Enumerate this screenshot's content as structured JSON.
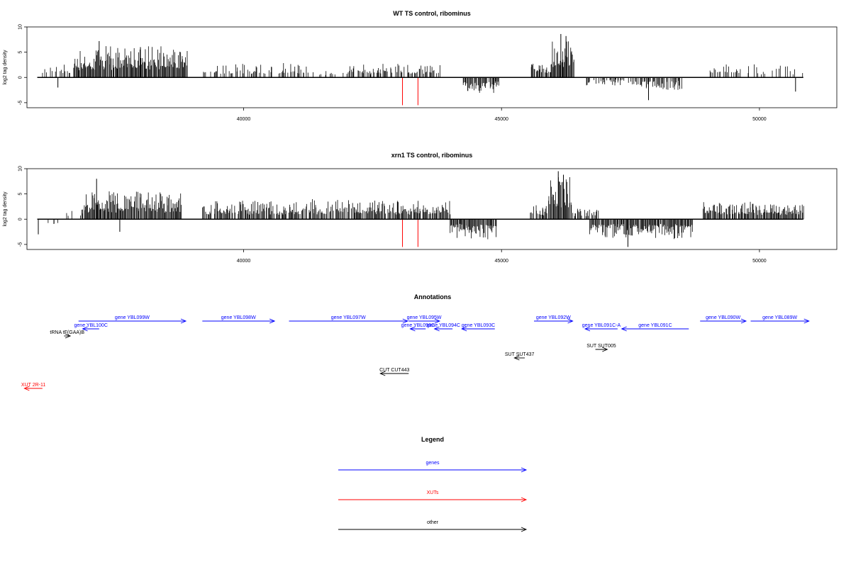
{
  "chart_data": [
    {
      "type": "bar",
      "title": "WT TS control, ribominus",
      "ylabel": "log2 tag density",
      "xlim": [
        35800,
        51500
      ],
      "ylim": [
        -6,
        10
      ],
      "x_ticks": [
        40000,
        45000,
        50000
      ],
      "y_ticks": [
        -5,
        0,
        5,
        10
      ],
      "baseline": {
        "from": 36000,
        "to": 50850
      },
      "segments": [
        {
          "from": 36100,
          "to": 36700,
          "mag": 2.5,
          "sign": 1,
          "density": 0.3
        },
        {
          "from": 36700,
          "to": 38900,
          "mag": 5.5,
          "sign": 1,
          "density": 1.0
        },
        {
          "from": 39200,
          "to": 41300,
          "mag": 2.6,
          "sign": 1,
          "density": 0.45
        },
        {
          "from": 41300,
          "to": 42000,
          "mag": 1.8,
          "sign": 1,
          "density": 0.25
        },
        {
          "from": 42000,
          "to": 43800,
          "mag": 2.5,
          "sign": 1,
          "density": 0.55
        },
        {
          "from": 44250,
          "to": 44950,
          "mag": 3.0,
          "sign": -1,
          "density": 0.9
        },
        {
          "from": 45550,
          "to": 45950,
          "mag": 3.0,
          "sign": 1,
          "density": 0.7
        },
        {
          "from": 45950,
          "to": 46400,
          "mag": 7.0,
          "sign": 1,
          "density": 1.0
        },
        {
          "from": 46600,
          "to": 47500,
          "mag": 1.5,
          "sign": -1,
          "density": 0.45
        },
        {
          "from": 47500,
          "to": 48500,
          "mag": 2.5,
          "sign": -1,
          "density": 0.75
        },
        {
          "from": 49000,
          "to": 49900,
          "mag": 2.8,
          "sign": 1,
          "density": 0.35
        },
        {
          "from": 49900,
          "to": 50850,
          "mag": 2.3,
          "sign": 1,
          "density": 0.25
        }
      ],
      "peaks": [
        {
          "x": 36400,
          "y": -2.0
        },
        {
          "x": 37200,
          "y": 7.2
        },
        {
          "x": 38000,
          "y": 6.0
        },
        {
          "x": 46150,
          "y": 8.6
        },
        {
          "x": 46250,
          "y": 8.2
        },
        {
          "x": 47850,
          "y": -4.5
        },
        {
          "x": 50700,
          "y": -2.8
        }
      ],
      "highlights": [
        {
          "x": 43080,
          "y": -5.5
        },
        {
          "x": 43380,
          "y": -5.5
        }
      ],
      "highlight_color": "#ff0000",
      "seed": 11
    },
    {
      "type": "bar",
      "title": "xrn1 TS control, ribominus",
      "ylabel": "log2 tag density",
      "xlim": [
        35800,
        51500
      ],
      "ylim": [
        -6,
        10
      ],
      "x_ticks": [
        40000,
        45000,
        50000
      ],
      "y_ticks": [
        -5,
        0,
        5,
        10
      ],
      "baseline": {
        "from": 36000,
        "to": 50850
      },
      "segments": [
        {
          "from": 36000,
          "to": 36400,
          "mag": 2.0,
          "sign": -1,
          "density": 0.2
        },
        {
          "from": 36500,
          "to": 36900,
          "mag": 1.8,
          "sign": 1,
          "density": 0.3
        },
        {
          "from": 36900,
          "to": 38800,
          "mag": 5.2,
          "sign": 1,
          "density": 1.0
        },
        {
          "from": 39200,
          "to": 43000,
          "mag": 3.5,
          "sign": 1,
          "density": 0.8
        },
        {
          "from": 43000,
          "to": 44000,
          "mag": 3.5,
          "sign": 1,
          "density": 0.85
        },
        {
          "from": 44000,
          "to": 44900,
          "mag": 3.5,
          "sign": -1,
          "density": 0.9
        },
        {
          "from": 45550,
          "to": 45900,
          "mag": 3.0,
          "sign": 1,
          "density": 0.7
        },
        {
          "from": 45900,
          "to": 46350,
          "mag": 7.5,
          "sign": 1,
          "density": 1.0
        },
        {
          "from": 46350,
          "to": 46900,
          "mag": 2.0,
          "sign": 1,
          "density": 0.6
        },
        {
          "from": 46700,
          "to": 48700,
          "mag": 3.5,
          "sign": -1,
          "density": 0.95
        },
        {
          "from": 48900,
          "to": 50850,
          "mag": 3.3,
          "sign": 1,
          "density": 0.9
        }
      ],
      "peaks": [
        {
          "x": 36020,
          "y": -3.0
        },
        {
          "x": 37150,
          "y": 8.0
        },
        {
          "x": 37600,
          "y": -2.5
        },
        {
          "x": 46100,
          "y": 9.5
        },
        {
          "x": 46200,
          "y": 8.8
        },
        {
          "x": 47450,
          "y": -5.5
        }
      ],
      "highlights": [
        {
          "x": 43080,
          "y": -5.5
        },
        {
          "x": 43380,
          "y": -5.5
        }
      ],
      "highlight_color": "#ff0000",
      "seed": 29
    }
  ],
  "annotations": {
    "title": "Annotations",
    "items": [
      {
        "label": "gene YBL099W",
        "from": 36800,
        "to": 38880,
        "dir": "right",
        "row": 0,
        "color": "#0000ff"
      },
      {
        "label": "gene YBL098W",
        "from": 39200,
        "to": 40600,
        "dir": "right",
        "row": 0,
        "color": "#0000ff"
      },
      {
        "label": "gene YBL097W",
        "from": 40880,
        "to": 43180,
        "dir": "right",
        "row": 0,
        "color": "#0000ff"
      },
      {
        "label": "gene YBL095W",
        "from": 43200,
        "to": 43800,
        "dir": "right",
        "row": 0,
        "color": "#0000ff"
      },
      {
        "label": "gene YBL092W",
        "from": 45630,
        "to": 46380,
        "dir": "right",
        "row": 0,
        "color": "#0000ff"
      },
      {
        "label": "gene YBL090W",
        "from": 48850,
        "to": 49740,
        "dir": "right",
        "row": 0,
        "color": "#0000ff"
      },
      {
        "label": "gene YBL089W",
        "from": 49830,
        "to": 50960,
        "dir": "right",
        "row": 0,
        "color": "#0000ff"
      },
      {
        "label": "gene YBL100C",
        "from": 36880,
        "to": 37200,
        "dir": "left",
        "row": 1,
        "color": "#0000ff"
      },
      {
        "label": "gene YBL096C",
        "from": 43230,
        "to": 43530,
        "dir": "left",
        "row": 1,
        "color": "#0000ff"
      },
      {
        "label": "gene YBL094C",
        "from": 43700,
        "to": 44050,
        "dir": "left",
        "row": 1,
        "color": "#0000ff"
      },
      {
        "label": "gene YBL093C",
        "from": 44230,
        "to": 44870,
        "dir": "left",
        "row": 1,
        "color": "#0000ff"
      },
      {
        "label": "gene YBL091C-A",
        "from": 46620,
        "to": 47250,
        "dir": "left",
        "row": 1,
        "color": "#0000ff"
      },
      {
        "label": "gene YBL091C",
        "from": 47330,
        "to": 48630,
        "dir": "left",
        "row": 1,
        "color": "#0000ff"
      },
      {
        "label": "tRNA tF(GAA)B",
        "from": 36520,
        "to": 36640,
        "dir": "right",
        "row": 2,
        "color": "#000000"
      },
      {
        "label": "SUT SUT437",
        "from": 45250,
        "to": 45450,
        "dir": "left",
        "row": 3,
        "color": "#000000"
      },
      {
        "label": "SUT SUT005",
        "from": 46820,
        "to": 47050,
        "dir": "right",
        "row": 4,
        "color": "#000000"
      },
      {
        "label": "CUT CUT443",
        "from": 42650,
        "to": 43200,
        "dir": "left",
        "row": 5,
        "color": "#000000"
      },
      {
        "label": "XUT 2R-11",
        "from": 35750,
        "to": 36100,
        "dir": "left",
        "row": 6,
        "color": "#ff0000"
      }
    ]
  },
  "legend": {
    "title": "Legend",
    "items": [
      {
        "label": "genes",
        "color": "#0000ff"
      },
      {
        "label": "XUTs",
        "color": "#ff0000"
      },
      {
        "label": "other",
        "color": "#000000"
      }
    ]
  }
}
